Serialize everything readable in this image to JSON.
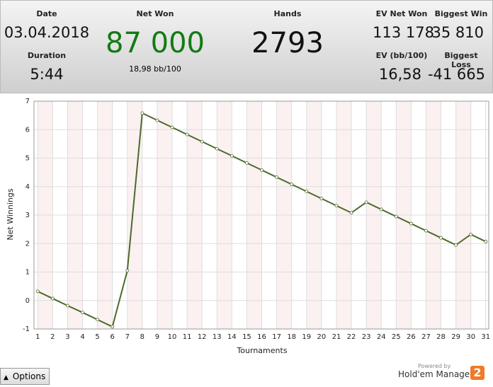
{
  "header": {
    "date": {
      "label": "Date",
      "value": "03.04.2018"
    },
    "duration": {
      "label": "Duration",
      "value": "5:44"
    },
    "net_won": {
      "label": "Net Won",
      "value": "87 000",
      "sub": "18,98 bb/100"
    },
    "hands": {
      "label": "Hands",
      "value": "2793"
    },
    "ev_net_won": {
      "label": "EV Net Won",
      "value": "113 178"
    },
    "biggest_win": {
      "label": "Biggest Win",
      "value": "35 810"
    },
    "ev_bb": {
      "label": "EV (bb/100)",
      "value": "16,58"
    },
    "biggest_loss": {
      "label": "Biggest Loss",
      "value": "-41 665"
    }
  },
  "chart_data": {
    "type": "line",
    "x_label": "Tournaments",
    "y_label": "Net Winnings",
    "x": [
      1,
      2,
      3,
      4,
      5,
      6,
      7,
      8,
      9,
      10,
      11,
      12,
      13,
      14,
      15,
      16,
      17,
      18,
      19,
      20,
      21,
      22,
      23,
      24,
      25,
      26,
      27,
      28,
      29,
      30,
      31
    ],
    "series": [
      {
        "color": "#4b6a2b",
        "values": [
          0.32,
          0.07,
          -0.18,
          -0.42,
          -0.67,
          -0.92,
          1.05,
          6.58,
          6.33,
          6.08,
          5.83,
          5.58,
          5.33,
          5.08,
          4.83,
          4.58,
          4.33,
          4.08,
          3.83,
          3.58,
          3.33,
          3.08,
          3.45,
          3.2,
          2.95,
          2.7,
          2.45,
          2.2,
          1.95,
          2.32,
          2.07
        ]
      }
    ],
    "xlim": [
      0.75,
      31.2
    ],
    "ylim": [
      -1,
      7
    ],
    "xticks": [
      1,
      2,
      3,
      4,
      5,
      6,
      7,
      8,
      9,
      10,
      11,
      12,
      13,
      14,
      15,
      16,
      17,
      18,
      19,
      20,
      21,
      22,
      23,
      24,
      25,
      26,
      27,
      28,
      29,
      30,
      31
    ],
    "yticks": [
      -1,
      0,
      1,
      2,
      3,
      4,
      5,
      6,
      7
    ],
    "grid": true
  },
  "footer": {
    "options": "Options",
    "powered": "Powered by",
    "brand": "Hold'em Manager",
    "logo": "2"
  }
}
